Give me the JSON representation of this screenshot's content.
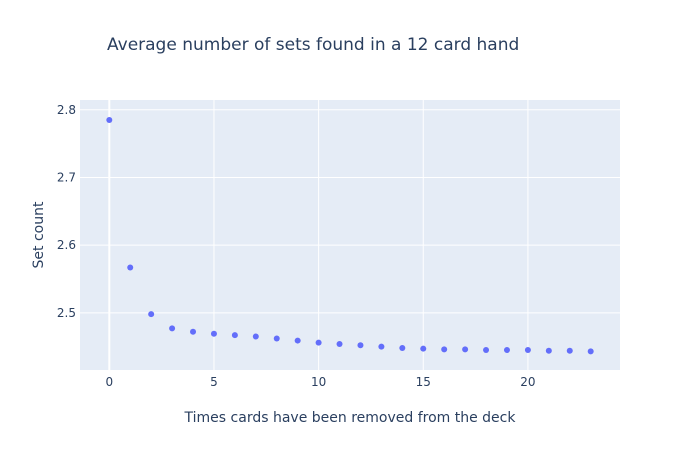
{
  "chart_data": {
    "type": "scatter",
    "title": "Average number of sets found in a 12 card hand",
    "xlabel": "Times cards have been removed from the deck",
    "ylabel": "Set count",
    "xlim": [
      -1.4,
      24.4
    ],
    "ylim": [
      2.4155,
      2.8145
    ],
    "x_ticks": [
      0,
      5,
      10,
      15,
      20
    ],
    "x_tick_labels": [
      "0",
      "5",
      "10",
      "15",
      "20"
    ],
    "y_ticks": [
      2.5,
      2.6,
      2.7,
      2.8
    ],
    "y_tick_labels": [
      "2.5",
      "2.6",
      "2.7",
      "2.8"
    ],
    "grid": true,
    "plot_background": "#e5ecf6",
    "marker_color": "#636efa",
    "series": [
      {
        "x": [
          0,
          1,
          2,
          3,
          4,
          5,
          6,
          7,
          8,
          9,
          10,
          11,
          12,
          13,
          14,
          15,
          16,
          17,
          18,
          19,
          20,
          21,
          22,
          23
        ],
        "y": [
          2.785,
          2.567,
          2.498,
          2.477,
          2.472,
          2.469,
          2.467,
          2.465,
          2.462,
          2.459,
          2.456,
          2.454,
          2.452,
          2.45,
          2.448,
          2.447,
          2.446,
          2.446,
          2.445,
          2.445,
          2.445,
          2.444,
          2.444,
          2.443
        ]
      }
    ]
  }
}
